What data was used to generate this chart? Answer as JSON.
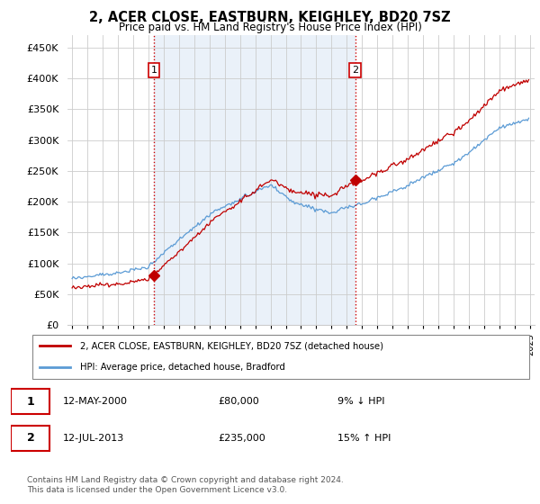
{
  "title": "2, ACER CLOSE, EASTBURN, KEIGHLEY, BD20 7SZ",
  "subtitle": "Price paid vs. HM Land Registry's House Price Index (HPI)",
  "legend_line1": "2, ACER CLOSE, EASTBURN, KEIGHLEY, BD20 7SZ (detached house)",
  "legend_line2": "HPI: Average price, detached house, Bradford",
  "footnote": "Contains HM Land Registry data © Crown copyright and database right 2024.\nThis data is licensed under the Open Government Licence v3.0.",
  "table_row1_date": "12-MAY-2000",
  "table_row1_price": "£80,000",
  "table_row1_hpi": "9% ↓ HPI",
  "table_row2_date": "12-JUL-2013",
  "table_row2_price": "£235,000",
  "table_row2_hpi": "15% ↑ HPI",
  "sale1_year": 2000.37,
  "sale1_price": 80000,
  "sale2_year": 2013.54,
  "sale2_price": 235000,
  "hpi_color": "#5b9bd5",
  "price_color": "#c00000",
  "background_fill": "#dce9f5",
  "grid_color": "#cccccc",
  "ylim": [
    0,
    470000
  ],
  "yticks": [
    0,
    50000,
    100000,
    150000,
    200000,
    250000,
    300000,
    350000,
    400000,
    450000
  ],
  "xlim_start": 1994.7,
  "xlim_end": 2025.3
}
